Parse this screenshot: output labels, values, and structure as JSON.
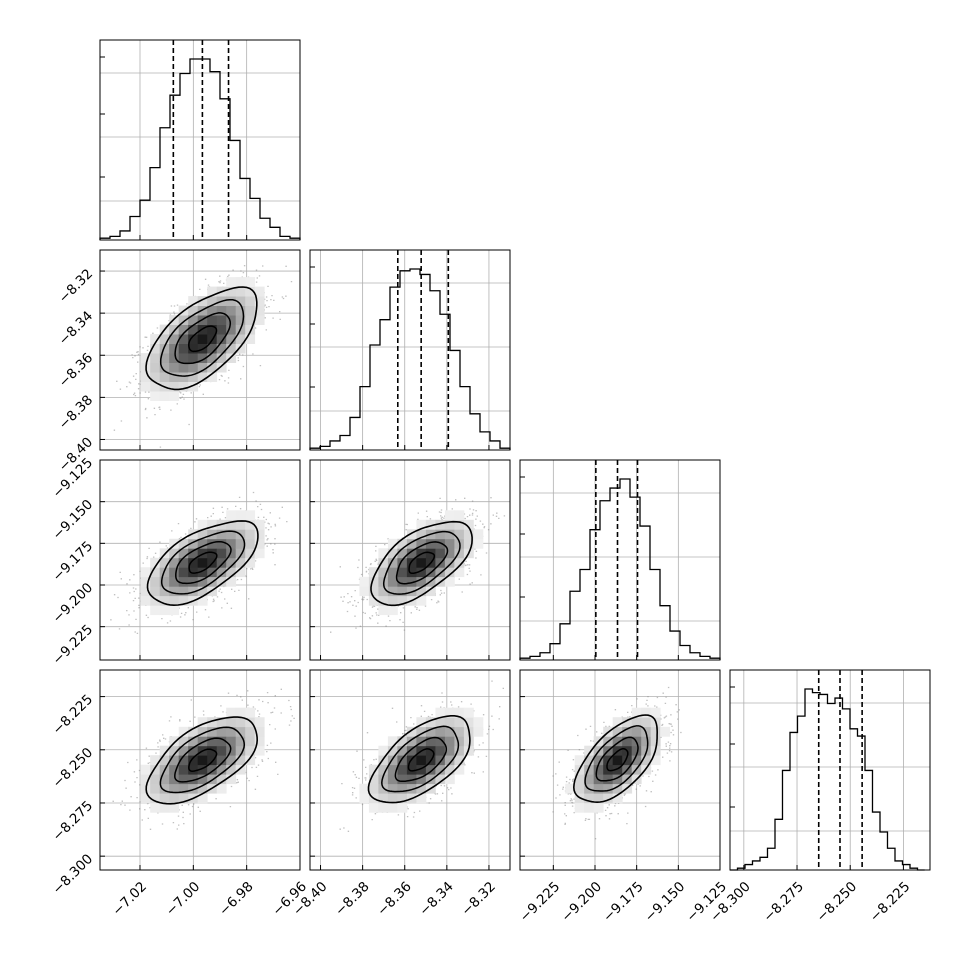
{
  "chart_data": {
    "type": "corner",
    "n_parameters": 4,
    "style": {
      "grid": true,
      "grid_color": "#b0b0b0",
      "line_color": "#000000",
      "point_color": "#8c8c8c",
      "background": "#ffffff"
    },
    "parameters": [
      {
        "range": [
          -7.035,
          -6.96
        ],
        "ticks": [
          -7.02,
          -7.0,
          -6.98,
          -6.96
        ],
        "tick_labels": [
          "−7.02",
          "−7.00",
          "−6.98",
          "−6.96"
        ],
        "quantiles": [
          -7.0075,
          -6.9966,
          -6.9868
        ],
        "histogram": {
          "bin_edges": [
            -7.035,
            -7.03125,
            -7.0275,
            -7.02375,
            -7.02,
            -7.01625,
            -7.0125,
            -7.00875,
            -7.005,
            -7.00125,
            -6.9975,
            -6.99375,
            -6.99,
            -6.98625,
            -6.9825,
            -6.97875,
            -6.975,
            -6.97125,
            -6.9675,
            -6.96375,
            -6.96
          ],
          "counts": [
            0.01,
            0.02,
            0.05,
            0.13,
            0.22,
            0.4,
            0.62,
            0.8,
            0.92,
            1.0,
            1.0,
            0.93,
            0.78,
            0.55,
            0.34,
            0.23,
            0.12,
            0.07,
            0.02,
            0.01
          ]
        }
      },
      {
        "range": [
          -8.405,
          -8.31
        ],
        "ticks": [
          -8.4,
          -8.38,
          -8.36,
          -8.34,
          -8.32
        ],
        "tick_labels": [
          "−8.40",
          "−8.38",
          "−8.36",
          "−8.34",
          "−8.32"
        ],
        "quantiles": [
          -8.3633,
          -8.3522,
          -8.3393
        ],
        "histogram": {
          "bin_edges": [
            -8.405,
            -8.40025,
            -8.3955,
            -8.39075,
            -8.386,
            -8.38125,
            -8.3765,
            -8.37175,
            -8.367,
            -8.36225,
            -8.3575,
            -8.35275,
            -8.348,
            -8.34325,
            -8.3385,
            -8.33375,
            -8.329,
            -8.32425,
            -8.3195,
            -8.31475,
            -8.31
          ],
          "counts": [
            0.01,
            0.02,
            0.05,
            0.08,
            0.18,
            0.35,
            0.58,
            0.72,
            0.9,
            0.99,
            1.0,
            0.97,
            0.88,
            0.75,
            0.55,
            0.35,
            0.2,
            0.1,
            0.05,
            0.01
          ]
        }
      },
      {
        "range": [
          -9.245,
          -9.125
        ],
        "ticks": [
          -9.225,
          -9.2,
          -9.175,
          -9.15,
          -9.125
        ],
        "tick_labels": [
          "−9.225",
          "−9.200",
          "−9.175",
          "−9.150",
          "−9.125"
        ],
        "quantiles": [
          -9.1995,
          -9.1865,
          -9.1745
        ],
        "histogram": {
          "bin_edges": [
            -9.245,
            -9.239,
            -9.233,
            -9.227,
            -9.221,
            -9.215,
            -9.209,
            -9.203,
            -9.197,
            -9.191,
            -9.185,
            -9.179,
            -9.173,
            -9.167,
            -9.161,
            -9.155,
            -9.149,
            -9.143,
            -9.137,
            -9.131,
            -9.125
          ],
          "counts": [
            0.01,
            0.02,
            0.04,
            0.09,
            0.2,
            0.38,
            0.5,
            0.72,
            0.88,
            0.95,
            1.0,
            0.9,
            0.74,
            0.5,
            0.3,
            0.16,
            0.08,
            0.04,
            0.02,
            0.01
          ]
        }
      },
      {
        "range": [
          -8.3065,
          -8.2125
        ],
        "ticks": [
          -8.3,
          -8.275,
          -8.25,
          -8.225
        ],
        "tick_labels": [
          "−8.300",
          "−8.275",
          "−8.250",
          "−8.225"
        ],
        "quantiles": [
          -8.2648,
          -8.2548,
          -8.2444
        ],
        "histogram": {
          "bin_edges": [
            -8.3065,
            -8.30298,
            -8.29945,
            -8.29593,
            -8.2924,
            -8.28888,
            -8.28535,
            -8.28183,
            -8.2783,
            -8.27478,
            -8.27125,
            -8.26773,
            -8.2642,
            -8.26068,
            -8.25715,
            -8.25363,
            -8.2501,
            -8.24658,
            -8.24305,
            -8.23953,
            -8.236,
            -8.23248,
            -8.22895,
            -8.22543,
            -8.2219,
            -8.21838,
            -8.215
          ],
          "counts": [
            0.0,
            0.01,
            0.03,
            0.05,
            0.07,
            0.12,
            0.28,
            0.55,
            0.76,
            0.85,
            1.0,
            0.98,
            0.97,
            0.92,
            0.95,
            0.89,
            0.78,
            0.74,
            0.55,
            0.32,
            0.21,
            0.12,
            0.05,
            0.03,
            0.01,
            0.0
          ]
        }
      }
    ],
    "pairs": [
      {
        "x_param": 0,
        "y_param": 1,
        "correlation": 0.6
      },
      {
        "x_param": 0,
        "y_param": 2,
        "correlation": 0.6
      },
      {
        "x_param": 1,
        "y_param": 2,
        "correlation": 0.6
      },
      {
        "x_param": 0,
        "y_param": 3,
        "correlation": 0.6
      },
      {
        "x_param": 1,
        "y_param": 3,
        "correlation": 0.6
      },
      {
        "x_param": 2,
        "y_param": 3,
        "correlation": 0.6
      }
    ],
    "contour_levels_sigma": [
      0.5,
      1.0,
      1.5,
      2.0
    ]
  }
}
